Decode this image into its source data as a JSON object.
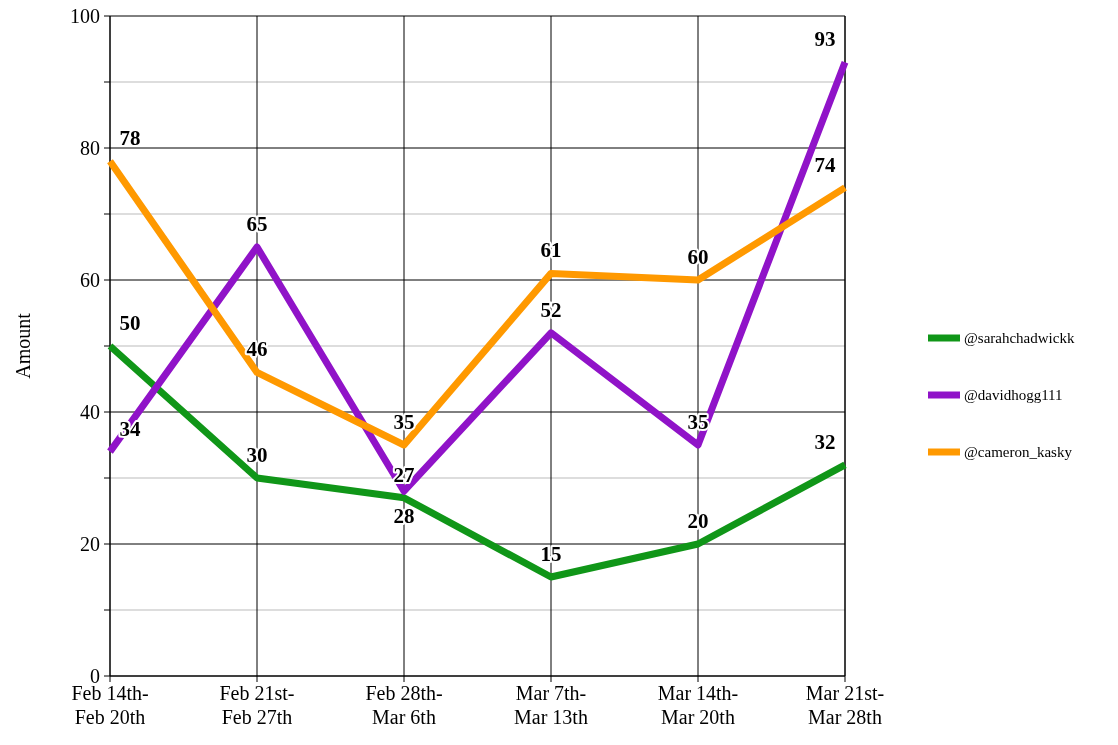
{
  "chart_data": {
    "type": "line",
    "ylabel": "Amount",
    "categories": [
      "Feb 14th-\nFeb 20th",
      "Feb 21st-\nFeb 27th",
      "Feb 28th-\nMar 6th",
      "Mar 7th-\nMar 13th",
      "Mar 14th-\nMar 20th",
      "Mar 21st-\nMar 28th"
    ],
    "series": [
      {
        "name": "@sarahchadwickk",
        "color": "#109618",
        "values": [
          50,
          30,
          27,
          15,
          20,
          32
        ]
      },
      {
        "name": "@davidhogg111",
        "color": "#9013c8",
        "values": [
          34,
          65,
          28,
          52,
          35,
          93
        ]
      },
      {
        "name": "@cameron_kasky",
        "color": "#ff9900",
        "values": [
          78,
          46,
          35,
          61,
          60,
          74
        ]
      }
    ],
    "ylim": [
      0,
      100
    ],
    "yticks": [
      0,
      {
        "value": 10,
        "label": null
      },
      20,
      {
        "value": 30,
        "label": null
      },
      40,
      {
        "value": 50,
        "label": null
      },
      60,
      {
        "value": 70,
        "label": null
      },
      80,
      {
        "value": 90,
        "label": null
      },
      100
    ],
    "grid": true,
    "legend": "right",
    "data_labels": true,
    "marker": "none",
    "line_style": "solid"
  }
}
